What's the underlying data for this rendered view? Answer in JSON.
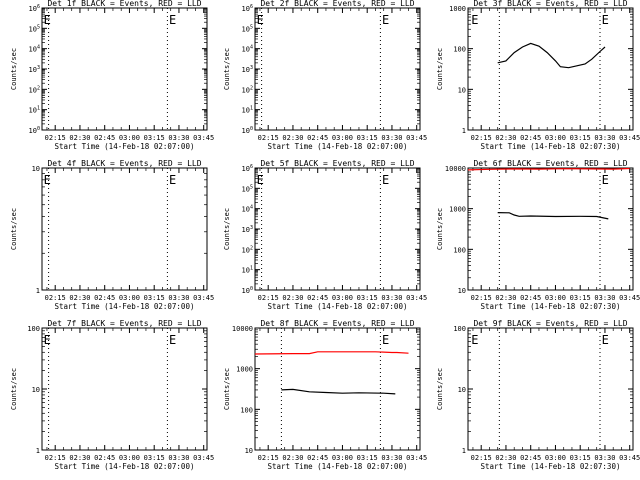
{
  "chart_data": [
    {
      "type": "line",
      "title": "Det 1f BLACK = Events, RED = LLD",
      "xlabel": "Start Time (14-Feb-18 02:07:00)",
      "ylabel": "Counts/sec",
      "xlim": [
        "02:07",
        "03:47"
      ],
      "ylog": true,
      "ylim": [
        1,
        1000000
      ],
      "ytick_labels": [
        "10^0",
        "10^1",
        "10^2",
        "10^3",
        "10^4",
        "10^5",
        "10^6"
      ],
      "xtick_labels": [
        "02:15",
        "02:30",
        "02:45",
        "03:00",
        "03:15",
        "03:30",
        "03:45"
      ],
      "vlines": [
        "02:11",
        "03:23"
      ],
      "annotations": [
        {
          "text": "E",
          "x": "02:08"
        },
        {
          "text": "E",
          "x": "03:24"
        }
      ],
      "series": []
    },
    {
      "type": "line",
      "title": "Det 2f BLACK = Events, RED = LLD",
      "xlabel": "Start Time (14-Feb-18 02:07:00)",
      "ylabel": "Counts/sec",
      "xlim": [
        "02:07",
        "03:47"
      ],
      "ylog": true,
      "ylim": [
        1,
        1000000
      ],
      "ytick_labels": [
        "10^0",
        "10^1",
        "10^2",
        "10^3",
        "10^4",
        "10^5",
        "10^6"
      ],
      "xtick_labels": [
        "02:15",
        "02:30",
        "02:45",
        "03:00",
        "03:15",
        "03:30",
        "03:45"
      ],
      "vlines": [
        "02:11",
        "03:23"
      ],
      "annotations": [
        {
          "text": "E",
          "x": "02:08"
        },
        {
          "text": "E",
          "x": "03:24"
        }
      ],
      "series": []
    },
    {
      "type": "line",
      "title": "Det 3f BLACK = Events, RED = LLD",
      "xlabel": "Start Time (14-Feb-18 02:07:30)",
      "ylabel": "Counts/sec",
      "xlim": [
        "02:07",
        "03:47"
      ],
      "ylog": true,
      "ylim": [
        1,
        1000
      ],
      "ytick_labels": [
        "1",
        "10",
        "100",
        "1000"
      ],
      "xtick_labels": [
        "02:15",
        "02:30",
        "02:45",
        "03:00",
        "03:15",
        "03:30",
        "03:45"
      ],
      "vlines": [
        "02:26",
        "03:27"
      ],
      "annotations": [
        {
          "text": "E",
          "x": "02:09"
        },
        {
          "text": "E",
          "x": "03:28"
        }
      ],
      "series": [
        {
          "color": "#000000",
          "x": [
            "02:25",
            "02:30",
            "02:35",
            "02:40",
            "02:45",
            "02:50",
            "02:55",
            "03:00",
            "03:03",
            "03:08",
            "03:13",
            "03:18",
            "03:22",
            "03:27",
            "03:30"
          ],
          "y": [
            45,
            50,
            80,
            110,
            135,
            115,
            80,
            50,
            36,
            34,
            38,
            42,
            55,
            85,
            110
          ]
        }
      ]
    },
    {
      "type": "line",
      "title": "Det 4f BLACK = Events, RED = LLD",
      "xlabel": "Start Time (14-Feb-18 02:07:00)",
      "ylabel": "Counts/sec",
      "xlim": [
        "02:07",
        "03:47"
      ],
      "ylog": true,
      "ylim": [
        1,
        10
      ],
      "ytick_labels": [
        "1",
        "10"
      ],
      "xtick_labels": [
        "02:15",
        "02:30",
        "02:45",
        "03:00",
        "03:15",
        "03:30",
        "03:45"
      ],
      "vlines": [
        "02:11",
        "03:23"
      ],
      "annotations": [
        {
          "text": "E",
          "x": "02:08"
        },
        {
          "text": "E",
          "x": "03:24"
        }
      ],
      "series": []
    },
    {
      "type": "line",
      "title": "Det 5f BLACK = Events, RED = LLD",
      "xlabel": "Start Time (14-Feb-18 02:07:00)",
      "ylabel": "Counts/sec",
      "xlim": [
        "02:07",
        "03:47"
      ],
      "ylog": true,
      "ylim": [
        1,
        1000000
      ],
      "ytick_labels": [
        "10^0",
        "10^1",
        "10^2",
        "10^3",
        "10^4",
        "10^5",
        "10^6"
      ],
      "xtick_labels": [
        "02:15",
        "02:30",
        "02:45",
        "03:00",
        "03:15",
        "03:30",
        "03:45"
      ],
      "vlines": [
        "02:11",
        "03:23"
      ],
      "annotations": [
        {
          "text": "E",
          "x": "02:08"
        },
        {
          "text": "E",
          "x": "03:24"
        }
      ],
      "series": []
    },
    {
      "type": "line",
      "title": "Det 6f BLACK = Events, RED = LLD",
      "xlabel": "Start Time (14-Feb-18 02:07:30)",
      "ylabel": "Counts/sec",
      "xlim": [
        "02:07",
        "03:47"
      ],
      "ylog": true,
      "ylim": [
        10,
        10000
      ],
      "ytick_labels": [
        "10",
        "100",
        "1000",
        "10000"
      ],
      "xtick_labels": [
        "02:15",
        "02:30",
        "02:45",
        "03:00",
        "03:15",
        "03:30",
        "03:45"
      ],
      "vlines": [
        "02:26",
        "03:27"
      ],
      "annotations": [
        {
          "text": "E",
          "x": "03:28"
        }
      ],
      "series": [
        {
          "color": "#ff0000",
          "x": [
            "02:07",
            "02:20",
            "02:35",
            "02:50",
            "03:05",
            "03:20",
            "03:35",
            "03:45"
          ],
          "y": [
            9000,
            9300,
            9500,
            9400,
            9600,
            9500,
            9400,
            9700
          ]
        },
        {
          "color": "#000000",
          "x": [
            "02:25",
            "02:32",
            "02:35",
            "02:38",
            "02:45",
            "03:00",
            "03:15",
            "03:25",
            "03:32"
          ],
          "y": [
            800,
            790,
            700,
            650,
            660,
            640,
            650,
            640,
            560
          ]
        }
      ]
    },
    {
      "type": "line",
      "title": "Det 7f BLACK = Events, RED = LLD",
      "xlabel": "Start Time (14-Feb-18 02:07:00)",
      "ylabel": "Counts/sec",
      "xlim": [
        "02:07",
        "03:47"
      ],
      "ylog": true,
      "ylim": [
        1,
        100
      ],
      "ytick_labels": [
        "1",
        "10",
        "100"
      ],
      "xtick_labels": [
        "02:15",
        "02:30",
        "02:45",
        "03:00",
        "03:15",
        "03:30",
        "03:45"
      ],
      "vlines": [
        "02:11",
        "03:23"
      ],
      "annotations": [
        {
          "text": "E",
          "x": "02:08"
        },
        {
          "text": "E",
          "x": "03:24"
        }
      ],
      "series": []
    },
    {
      "type": "line",
      "title": "Det 8f BLACK = Events, RED = LLD",
      "xlabel": "Start Time (14-Feb-18 02:07:00)",
      "ylabel": "Counts/sec",
      "xlim": [
        "02:07",
        "03:47"
      ],
      "ylog": true,
      "ylim": [
        10,
        10000
      ],
      "ytick_labels": [
        "10",
        "100",
        "1000",
        "10000"
      ],
      "xtick_labels": [
        "02:15",
        "02:30",
        "02:45",
        "03:00",
        "03:15",
        "03:30",
        "03:45"
      ],
      "vlines": [
        "02:23",
        "03:23"
      ],
      "annotations": [
        {
          "text": "E",
          "x": "03:24"
        }
      ],
      "series": [
        {
          "color": "#ff0000",
          "x": [
            "02:07",
            "02:30",
            "02:40",
            "02:45",
            "03:00",
            "03:20",
            "03:30",
            "03:33",
            "03:40"
          ],
          "y": [
            2300,
            2350,
            2350,
            2600,
            2600,
            2600,
            2500,
            2500,
            2400
          ]
        },
        {
          "color": "#000000",
          "x": [
            "02:23",
            "02:30",
            "02:40",
            "02:50",
            "03:00",
            "03:10",
            "03:25",
            "03:32"
          ],
          "y": [
            300,
            310,
            270,
            260,
            250,
            255,
            250,
            240
          ]
        }
      ]
    },
    {
      "type": "line",
      "title": "Det 9f BLACK = Events, RED = LLD",
      "xlabel": "Start Time (14-Feb-18 02:07:30)",
      "ylabel": "Counts/sec",
      "xlim": [
        "02:07",
        "03:47"
      ],
      "ylog": true,
      "ylim": [
        1,
        100
      ],
      "ytick_labels": [
        "1",
        "10",
        "100"
      ],
      "xtick_labels": [
        "02:15",
        "02:30",
        "02:45",
        "03:00",
        "03:15",
        "03:30",
        "03:45"
      ],
      "vlines": [
        "02:26",
        "03:27"
      ],
      "annotations": [
        {
          "text": "E",
          "x": "02:09"
        },
        {
          "text": "E",
          "x": "03:28"
        }
      ],
      "series": []
    }
  ]
}
